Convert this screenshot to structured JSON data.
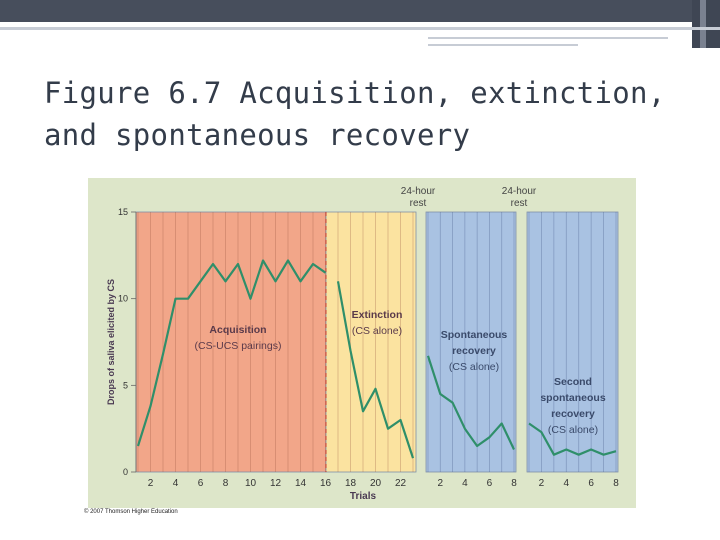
{
  "slide": {
    "title_line1": "Figure 6.7  Acquisition, extinction,",
    "title_line2": "and spontaneous recovery",
    "copyright": "© 2007 Thomson Higher Education"
  },
  "colors": {
    "acquisition_bg": "#f2a689",
    "extinction_bg": "#fbe3a0",
    "recovery_bg": "#a9c2e2",
    "chart_bg": "#dde6c9",
    "line": "#2f8f6a"
  },
  "chart_data": {
    "type": "line",
    "title": "",
    "ylabel": "Drops of saliva elicited by CS",
    "xlabel": "Trials",
    "ylim": [
      0,
      15
    ],
    "yticks": [
      0,
      5,
      10,
      15
    ],
    "grid": true,
    "panels": [
      {
        "name": "Acquisition",
        "label_lines": [
          "Acquisition",
          "(CS-UCS pairings)"
        ],
        "header": "",
        "x": [
          1,
          2,
          3,
          4,
          5,
          6,
          7,
          8,
          9,
          10,
          11,
          12,
          13,
          14,
          15,
          16
        ],
        "values": [
          1.5,
          3.8,
          6.8,
          10.0,
          10.0,
          11.0,
          12.0,
          11.0,
          12.0,
          10.0,
          12.2,
          11.0,
          12.2,
          11.0,
          12.0,
          11.5
        ],
        "xticks": [
          2,
          4,
          6,
          8,
          10,
          12,
          14,
          16
        ]
      },
      {
        "name": "Extinction",
        "label_lines": [
          "Extinction",
          "(CS alone)"
        ],
        "header": "",
        "x": [
          17,
          18,
          19,
          20,
          21,
          22,
          23
        ],
        "values": [
          11.0,
          7.0,
          3.5,
          4.8,
          2.5,
          3.0,
          0.8
        ],
        "xticks": [
          18,
          20,
          22
        ]
      },
      {
        "name": "Spontaneous recovery",
        "label_lines": [
          "Spontaneous",
          "recovery",
          "(CS alone)"
        ],
        "header": [
          "24-hour",
          "rest"
        ],
        "x": [
          1,
          2,
          3,
          4,
          5,
          6,
          7,
          8
        ],
        "values": [
          6.7,
          4.5,
          4.0,
          2.5,
          1.5,
          2.0,
          2.8,
          1.3
        ],
        "xticks": [
          2,
          4,
          6,
          8
        ]
      },
      {
        "name": "Second spontaneous recovery",
        "label_lines": [
          "Second",
          "spontaneous",
          "recovery",
          "(CS alone)"
        ],
        "header": [
          "24-hour",
          "rest"
        ],
        "x": [
          1,
          2,
          3,
          4,
          5,
          6,
          7,
          8
        ],
        "values": [
          2.8,
          2.3,
          1.0,
          1.3,
          1.0,
          1.3,
          1.0,
          1.2
        ],
        "xticks": [
          2,
          4,
          6,
          8
        ]
      }
    ]
  }
}
